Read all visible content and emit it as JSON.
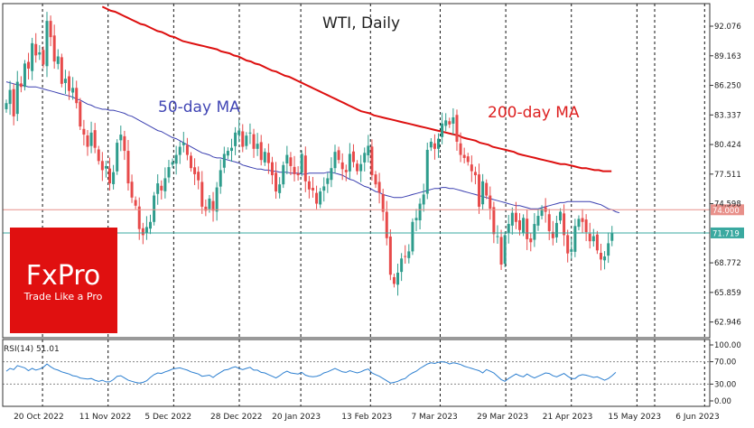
{
  "chart_data": {
    "type": "candlestick",
    "title": "WTI, Daily",
    "timeframe": "Daily",
    "instrument": "WTI",
    "y_ticks": [
      "92.076",
      "89.163",
      "86.250",
      "83.337",
      "80.424",
      "77.511",
      "74.598",
      "68.772",
      "65.859",
      "62.946"
    ],
    "ylim": [
      61.4,
      94.3
    ],
    "x_labels": [
      "20 Oct 2022",
      "11 Nov 2022",
      "5 Dec 2022",
      "28 Dec 2022",
      "20 Jan 2023",
      "13 Feb 2023",
      "7 Mar 2023",
      "29 Mar 2023",
      "21 Apr 2023",
      "15 May 2023",
      "6 Jun 2023"
    ],
    "ma_labels": {
      "ma50": "50-day MA",
      "ma200": "200-day MA"
    },
    "price_labels": {
      "level": "74.000",
      "current": "71.719"
    },
    "levels": {
      "horizontal": 74.0,
      "current": 71.719
    },
    "colors": {
      "bull": "#2e9c8c",
      "bear": "#e74a4a",
      "ma50": "#3a3fb0",
      "ma200": "#dd1010",
      "level": "#e8908a",
      "current": "#3aa9a0"
    },
    "closes": [
      84.5,
      85.8,
      83.2,
      86.6,
      86.1,
      88.4,
      87.9,
      90.4,
      89.2,
      89.5,
      88.3,
      92.6,
      91.0,
      88.6,
      89.1,
      86.4,
      86.9,
      85.7,
      86.0,
      84.5,
      82.2,
      81.4,
      80.2,
      81.6,
      80.1,
      78.8,
      77.9,
      78.3,
      76.6,
      77.7,
      80.6,
      81.4,
      79.8,
      76.6,
      75.2,
      74.4,
      72.1,
      71.5,
      72.3,
      72.8,
      75.4,
      76.6,
      75.9,
      77.1,
      78.2,
      78.7,
      79.4,
      80.2,
      80.6,
      79.4,
      78.1,
      77.5,
      76.9,
      74.3,
      73.9,
      75.1,
      73.9,
      76.2,
      77.9,
      79.5,
      79.8,
      80.1,
      81.6,
      81.8,
      80.2,
      81.3,
      81.6,
      80.0,
      80.5,
      78.9,
      79.7,
      78.6,
      77.4,
      75.8,
      76.5,
      78.4,
      79.4,
      78.3,
      77.5,
      77.4,
      79.5,
      76.8,
      76.0,
      75.9,
      74.6,
      75.8,
      76.3,
      77.1,
      78.1,
      79.7,
      78.9,
      78.0,
      77.7,
      79.5,
      78.7,
      77.8,
      78.5,
      79.6,
      80.3,
      77.4,
      76.5,
      75.7,
      73.8,
      71.2,
      67.6,
      66.7,
      67.8,
      69.2,
      69.4,
      69.9,
      72.8,
      73.2,
      74.6,
      75.5,
      79.9,
      80.7,
      80.0,
      81.0,
      82.5,
      82.8,
      82.4,
      83.1,
      80.7,
      79.4,
      79.1,
      78.7,
      77.8,
      77.4,
      74.3,
      76.8,
      75.4,
      74.1,
      71.6,
      71.4,
      68.6,
      71.5,
      72.6,
      73.7,
      72.8,
      72.0,
      73.2,
      71.1,
      70.8,
      72.6,
      73.4,
      74.1,
      73.8,
      71.9,
      71.2,
      72.7,
      73.8,
      71.5,
      69.7,
      70.1,
      72.4,
      73.1,
      72.8,
      71.8,
      70.9,
      71.4,
      70.0,
      69.1,
      69.4,
      70.7,
      71.7
    ],
    "ma50": [
      86.6,
      86.5,
      86.4,
      86.3,
      86.3,
      86.2,
      86.1,
      86.1,
      86.1,
      86.0,
      85.9,
      85.8,
      85.7,
      85.6,
      85.5,
      85.4,
      85.3,
      85.2,
      85.1,
      84.9,
      84.8,
      84.6,
      84.4,
      84.3,
      84.1,
      84.0,
      83.9,
      83.9,
      83.8,
      83.8,
      83.7,
      83.6,
      83.5,
      83.3,
      83.2,
      83.0,
      82.8,
      82.6,
      82.4,
      82.2,
      82.0,
      81.8,
      81.7,
      81.5,
      81.3,
      81.1,
      81.0,
      80.8,
      80.6,
      80.4,
      80.2,
      80.0,
      79.8,
      79.6,
      79.5,
      79.4,
      79.2,
      79.1,
      79.1,
      79.0,
      78.9,
      78.8,
      78.7,
      78.6,
      78.4,
      78.3,
      78.2,
      78.1,
      78.0,
      78.0,
      77.9,
      77.9,
      77.8,
      77.8,
      77.7,
      77.7,
      77.7,
      77.6,
      77.6,
      77.6,
      77.5,
      77.5,
      77.6,
      77.6,
      77.6,
      77.6,
      77.6,
      77.7,
      77.7,
      77.6,
      77.5,
      77.4,
      77.2,
      77.0,
      76.9,
      76.7,
      76.5,
      76.3,
      76.2,
      76.0,
      75.8,
      75.7,
      75.5,
      75.4,
      75.3,
      75.2,
      75.2,
      75.2,
      75.3,
      75.4,
      75.5,
      75.6,
      75.7,
      75.8,
      75.9,
      76.0,
      76.1,
      76.1,
      76.2,
      76.2,
      76.1,
      76.1,
      76.0,
      75.9,
      75.8,
      75.7,
      75.6,
      75.5,
      75.4,
      75.3,
      75.2,
      75.1,
      75.0,
      74.9,
      74.8,
      74.7,
      74.6,
      74.5,
      74.4,
      74.4,
      74.3,
      74.2,
      74.1,
      74.1,
      74.1,
      74.2,
      74.3,
      74.4,
      74.5,
      74.6,
      74.7,
      74.7,
      74.8,
      74.8,
      74.8,
      74.8,
      74.8,
      74.8,
      74.8,
      74.7,
      74.6,
      74.5,
      74.3,
      74.1,
      74.0,
      73.8,
      73.7
    ],
    "ma200_x_start": 26,
    "ma200": [
      94.0,
      93.8,
      93.6,
      93.5,
      93.3,
      93.1,
      92.9,
      92.7,
      92.5,
      92.3,
      92.2,
      92.0,
      91.8,
      91.6,
      91.5,
      91.3,
      91.1,
      91.0,
      90.8,
      90.6,
      90.5,
      90.4,
      90.3,
      90.2,
      90.1,
      90.0,
      89.9,
      89.8,
      89.6,
      89.5,
      89.4,
      89.2,
      89.1,
      88.9,
      88.7,
      88.6,
      88.4,
      88.3,
      88.1,
      87.9,
      87.7,
      87.6,
      87.4,
      87.2,
      87.1,
      86.9,
      86.7,
      86.5,
      86.3,
      86.1,
      85.9,
      85.7,
      85.5,
      85.3,
      85.1,
      84.9,
      84.7,
      84.5,
      84.3,
      84.1,
      83.9,
      83.7,
      83.6,
      83.5,
      83.3,
      83.2,
      83.1,
      83.0,
      82.9,
      82.8,
      82.7,
      82.6,
      82.5,
      82.4,
      82.3,
      82.2,
      82.1,
      82.0,
      81.9,
      81.8,
      81.7,
      81.6,
      81.5,
      81.4,
      81.3,
      81.1,
      81.0,
      80.9,
      80.8,
      80.6,
      80.5,
      80.4,
      80.2,
      80.1,
      80.0,
      79.9,
      79.8,
      79.7,
      79.5,
      79.4,
      79.3,
      79.2,
      79.1,
      79.0,
      78.9,
      78.8,
      78.7,
      78.6,
      78.5,
      78.5,
      78.4,
      78.3,
      78.2,
      78.1,
      78.1,
      78.0,
      77.9,
      77.9,
      77.8,
      77.8,
      77.8
    ],
    "rsi": {
      "label": "RSI(14) 51.01",
      "period": 14,
      "last": 51.01,
      "y_ticks": [
        "100.00",
        "70.00",
        "30.00",
        "0.00"
      ],
      "levels": [
        70,
        30
      ],
      "values": [
        53,
        58,
        56,
        63,
        61,
        59,
        54,
        58,
        55,
        57,
        60,
        66,
        61,
        57,
        55,
        52,
        50,
        48,
        45,
        44,
        41,
        40,
        39,
        40,
        37,
        35,
        37,
        34,
        34,
        38,
        44,
        45,
        41,
        37,
        35,
        33,
        32,
        33,
        36,
        42,
        47,
        50,
        49,
        52,
        54,
        57,
        58,
        59,
        57,
        55,
        52,
        50,
        48,
        44,
        45,
        46,
        42,
        47,
        51,
        55,
        56,
        59,
        61,
        58,
        56,
        58,
        60,
        55,
        55,
        51,
        50,
        47,
        44,
        41,
        45,
        50,
        53,
        50,
        49,
        48,
        51,
        46,
        44,
        43,
        44,
        46,
        50,
        52,
        55,
        58,
        55,
        52,
        51,
        54,
        52,
        50,
        52,
        55,
        57,
        50,
        47,
        44,
        40,
        36,
        32,
        33,
        35,
        38,
        40,
        46,
        50,
        53,
        58,
        62,
        66,
        68,
        67,
        69,
        70,
        69,
        66,
        68,
        67,
        65,
        62,
        60,
        58,
        56,
        54,
        50,
        56,
        53,
        50,
        44,
        38,
        35,
        40,
        44,
        48,
        45,
        43,
        48,
        44,
        41,
        44,
        47,
        50,
        49,
        45,
        43,
        46,
        49,
        44,
        40,
        40,
        45,
        47,
        46,
        44,
        42,
        43,
        40,
        37,
        40,
        45,
        51
      ]
    }
  },
  "brand": {
    "name": "FxPro",
    "tagline": "Trade Like a Pro"
  }
}
